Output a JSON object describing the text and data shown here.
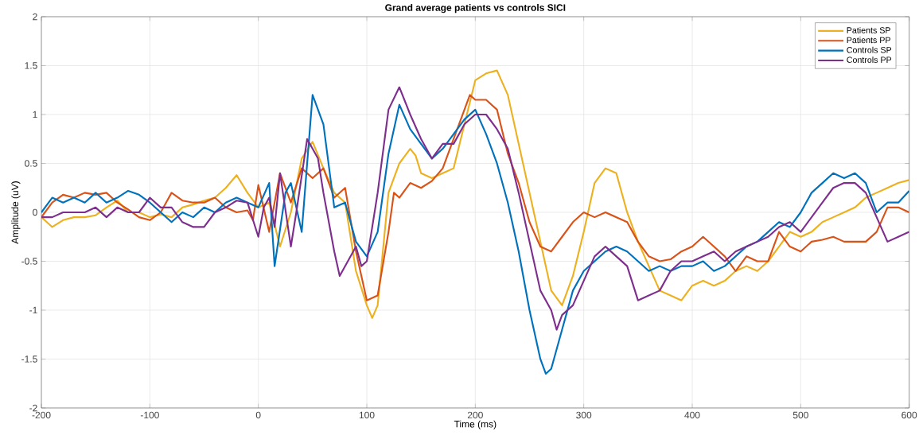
{
  "chart_data": {
    "type": "line",
    "title": "Grand average patients vs controls SICI",
    "xlabel": "Time (ms)",
    "ylabel": "Amplitude (uV)",
    "xlim": [
      -200,
      600
    ],
    "ylim": [
      -2,
      2
    ],
    "xticks": [
      -200,
      -100,
      0,
      100,
      200,
      300,
      400,
      500,
      600
    ],
    "yticks": [
      -2,
      -1.5,
      -1,
      -0.5,
      0,
      0.5,
      1,
      1.5,
      2
    ],
    "grid": true,
    "legend": "top right",
    "series": [
      {
        "name": "Patients SP",
        "color": "#edb120",
        "x": [
          -200,
          -190,
          -180,
          -170,
          -160,
          -150,
          -140,
          -130,
          -120,
          -110,
          -100,
          -90,
          -80,
          -70,
          -60,
          -50,
          -40,
          -30,
          -20,
          -10,
          0,
          10,
          20,
          30,
          40,
          50,
          60,
          70,
          80,
          90,
          100,
          105,
          110,
          120,
          130,
          140,
          145,
          150,
          160,
          170,
          180,
          190,
          200,
          210,
          220,
          230,
          240,
          250,
          260,
          270,
          280,
          290,
          300,
          310,
          320,
          330,
          340,
          350,
          360,
          370,
          380,
          390,
          400,
          410,
          420,
          430,
          440,
          450,
          460,
          470,
          480,
          490,
          500,
          510,
          520,
          530,
          540,
          550,
          560,
          570,
          580,
          590,
          600
        ],
        "values": [
          -0.05,
          -0.15,
          -0.08,
          -0.05,
          -0.05,
          -0.03,
          0.05,
          0.12,
          0.0,
          0.0,
          -0.05,
          -0.02,
          -0.05,
          0.05,
          0.08,
          0.12,
          0.15,
          0.25,
          0.38,
          0.2,
          0.05,
          0.1,
          -0.35,
          0.0,
          0.55,
          0.72,
          0.45,
          0.2,
          0.1,
          -0.6,
          -0.95,
          -1.08,
          -0.95,
          0.2,
          0.5,
          0.65,
          0.58,
          0.4,
          0.35,
          0.4,
          0.45,
          0.9,
          1.35,
          1.42,
          1.45,
          1.2,
          0.7,
          0.2,
          -0.3,
          -0.8,
          -0.95,
          -0.65,
          -0.2,
          0.3,
          0.45,
          0.4,
          0.0,
          -0.3,
          -0.55,
          -0.8,
          -0.85,
          -0.9,
          -0.75,
          -0.7,
          -0.75,
          -0.7,
          -0.6,
          -0.55,
          -0.6,
          -0.5,
          -0.35,
          -0.2,
          -0.25,
          -0.2,
          -0.1,
          -0.05,
          0.0,
          0.05,
          0.15,
          0.2,
          0.25,
          0.3,
          0.33
        ]
      },
      {
        "name": "Patients PP",
        "color": "#d95319",
        "x": [
          -200,
          -190,
          -180,
          -170,
          -160,
          -150,
          -140,
          -130,
          -120,
          -110,
          -100,
          -90,
          -80,
          -70,
          -60,
          -50,
          -40,
          -30,
          -20,
          -10,
          -5,
          0,
          10,
          20,
          30,
          40,
          50,
          60,
          70,
          80,
          90,
          100,
          110,
          120,
          125,
          130,
          140,
          150,
          160,
          170,
          180,
          190,
          195,
          200,
          210,
          220,
          230,
          240,
          250,
          260,
          270,
          280,
          290,
          300,
          310,
          320,
          330,
          340,
          350,
          360,
          370,
          380,
          390,
          400,
          410,
          420,
          430,
          440,
          450,
          460,
          470,
          480,
          490,
          500,
          510,
          520,
          530,
          540,
          550,
          560,
          570,
          580,
          590,
          600
        ],
        "values": [
          -0.05,
          0.1,
          0.18,
          0.15,
          0.2,
          0.18,
          0.2,
          0.1,
          0.03,
          -0.05,
          -0.08,
          0.0,
          0.2,
          0.12,
          0.1,
          0.1,
          0.15,
          0.05,
          0.0,
          0.02,
          -0.08,
          0.28,
          -0.2,
          0.4,
          0.1,
          0.45,
          0.35,
          0.45,
          0.15,
          0.25,
          -0.4,
          -0.9,
          -0.85,
          -0.2,
          0.2,
          0.15,
          0.3,
          0.25,
          0.32,
          0.45,
          0.75,
          1.05,
          1.2,
          1.15,
          1.15,
          1.05,
          0.6,
          0.3,
          -0.1,
          -0.35,
          -0.4,
          -0.25,
          -0.1,
          0.0,
          -0.05,
          0.0,
          -0.05,
          -0.1,
          -0.3,
          -0.45,
          -0.5,
          -0.48,
          -0.4,
          -0.35,
          -0.25,
          -0.35,
          -0.45,
          -0.6,
          -0.45,
          -0.5,
          -0.5,
          -0.2,
          -0.35,
          -0.4,
          -0.3,
          -0.28,
          -0.25,
          -0.3,
          -0.3,
          -0.3,
          -0.2,
          0.05,
          0.05,
          0.0
        ]
      },
      {
        "name": "Controls SP",
        "color": "#0072bd",
        "x": [
          -200,
          -190,
          -180,
          -170,
          -160,
          -150,
          -140,
          -130,
          -120,
          -110,
          -100,
          -90,
          -80,
          -70,
          -60,
          -50,
          -40,
          -30,
          -20,
          -10,
          0,
          10,
          15,
          25,
          30,
          40,
          50,
          60,
          70,
          80,
          90,
          100,
          110,
          120,
          130,
          140,
          150,
          160,
          170,
          180,
          190,
          200,
          210,
          220,
          230,
          240,
          250,
          260,
          265,
          270,
          280,
          290,
          300,
          310,
          320,
          330,
          340,
          350,
          360,
          370,
          380,
          390,
          400,
          410,
          420,
          430,
          440,
          450,
          460,
          470,
          480,
          490,
          500,
          510,
          520,
          530,
          540,
          550,
          560,
          570,
          580,
          590,
          600
        ],
        "values": [
          0.0,
          0.15,
          0.1,
          0.15,
          0.1,
          0.2,
          0.1,
          0.15,
          0.22,
          0.18,
          0.1,
          0.0,
          -0.1,
          0.0,
          -0.05,
          0.05,
          0.0,
          0.1,
          0.15,
          0.1,
          0.05,
          0.3,
          -0.55,
          0.2,
          0.3,
          -0.2,
          1.2,
          0.9,
          0.05,
          0.1,
          -0.3,
          -0.45,
          -0.2,
          0.6,
          1.1,
          0.85,
          0.7,
          0.55,
          0.65,
          0.8,
          0.95,
          1.05,
          0.8,
          0.5,
          0.1,
          -0.4,
          -1.0,
          -1.5,
          -1.65,
          -1.6,
          -1.2,
          -0.8,
          -0.6,
          -0.5,
          -0.4,
          -0.35,
          -0.4,
          -0.5,
          -0.6,
          -0.55,
          -0.6,
          -0.55,
          -0.55,
          -0.5,
          -0.6,
          -0.55,
          -0.45,
          -0.35,
          -0.3,
          -0.2,
          -0.1,
          -0.15,
          0.0,
          0.2,
          0.3,
          0.4,
          0.35,
          0.4,
          0.3,
          0.0,
          0.1,
          0.1,
          0.22
        ]
      },
      {
        "name": "Controls PP",
        "color": "#7e2f8e",
        "x": [
          -200,
          -190,
          -180,
          -170,
          -160,
          -150,
          -140,
          -130,
          -120,
          -110,
          -100,
          -90,
          -80,
          -70,
          -60,
          -50,
          -40,
          -30,
          -20,
          -10,
          0,
          5,
          10,
          15,
          20,
          30,
          35,
          45,
          55,
          60,
          70,
          75,
          80,
          90,
          95,
          100,
          110,
          120,
          130,
          140,
          150,
          160,
          170,
          180,
          190,
          200,
          210,
          220,
          230,
          240,
          250,
          260,
          270,
          275,
          280,
          290,
          300,
          310,
          320,
          330,
          340,
          350,
          360,
          370,
          380,
          390,
          400,
          410,
          420,
          430,
          440,
          450,
          460,
          470,
          480,
          490,
          500,
          510,
          520,
          530,
          540,
          550,
          560,
          570,
          580,
          590,
          600
        ],
        "values": [
          -0.05,
          -0.05,
          0.0,
          0.0,
          0.0,
          0.05,
          -0.05,
          0.05,
          0.0,
          0.0,
          0.15,
          0.05,
          0.05,
          -0.1,
          -0.15,
          -0.15,
          0.0,
          0.05,
          0.12,
          0.1,
          -0.25,
          0.05,
          0.15,
          -0.15,
          0.4,
          -0.35,
          0.0,
          0.75,
          0.55,
          0.2,
          -0.4,
          -0.65,
          -0.55,
          -0.35,
          -0.55,
          -0.5,
          0.2,
          1.05,
          1.28,
          1.0,
          0.75,
          0.55,
          0.7,
          0.7,
          0.9,
          1.0,
          1.0,
          0.85,
          0.65,
          0.2,
          -0.3,
          -0.8,
          -1.0,
          -1.2,
          -1.05,
          -0.95,
          -0.7,
          -0.45,
          -0.35,
          -0.45,
          -0.55,
          -0.9,
          -0.85,
          -0.8,
          -0.6,
          -0.5,
          -0.5,
          -0.45,
          -0.4,
          -0.5,
          -0.4,
          -0.35,
          -0.3,
          -0.25,
          -0.15,
          -0.1,
          -0.2,
          -0.05,
          0.1,
          0.25,
          0.3,
          0.3,
          0.2,
          -0.05,
          -0.3,
          -0.25,
          -0.2
        ]
      }
    ]
  }
}
